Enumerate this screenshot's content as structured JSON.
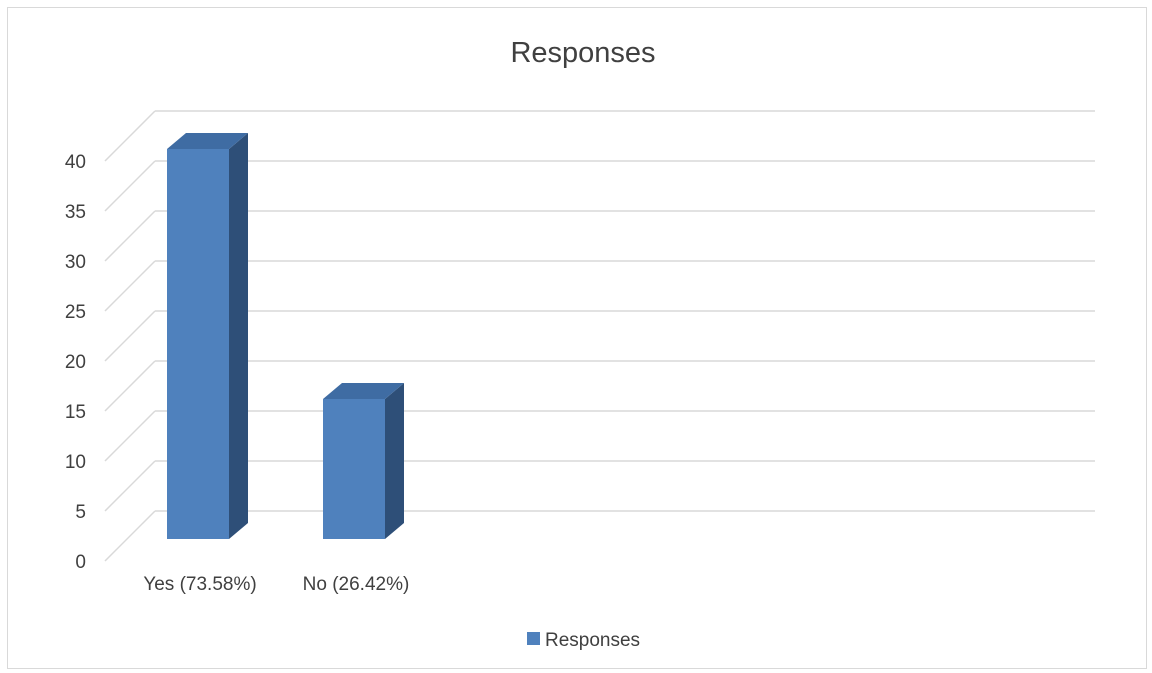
{
  "chart_data": {
    "type": "bar",
    "title": "Responses",
    "categories": [
      "Yes (73.58%)",
      "No (26.42%)"
    ],
    "series": [
      {
        "name": "Responses",
        "values": [
          39,
          14
        ],
        "color": "#4f81bd"
      }
    ],
    "xlabel": "",
    "ylabel": "",
    "ylim": [
      0,
      40
    ],
    "yticks": [
      0,
      5,
      10,
      15,
      20,
      25,
      30,
      35,
      40
    ],
    "grid": true,
    "style": "3d-column",
    "legend": {
      "position": "bottom",
      "entries": [
        "Responses"
      ]
    }
  }
}
